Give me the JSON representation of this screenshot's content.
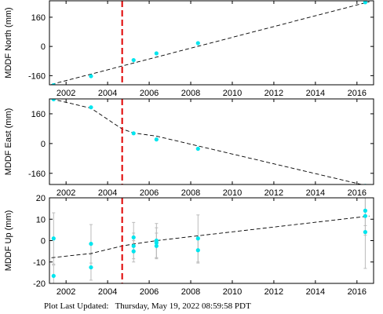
{
  "footer": {
    "label": "Plot Last Updated:",
    "timestamp": "Thursday, May 19, 2022 08:59:58 PDT"
  },
  "colors": {
    "points": "#00e5ee",
    "trend": "#000000",
    "event_line": "#e00000",
    "error_bars": "#bbbbbb"
  },
  "chart_data": [
    {
      "type": "scatter",
      "ylabel": "MDDF North (mm)",
      "xlim": [
        2001.2,
        2016.8
      ],
      "ylim": [
        -210,
        250
      ],
      "xticks": [
        2002,
        2004,
        2006,
        2008,
        2010,
        2012,
        2014,
        2016
      ],
      "yticks": [
        -160,
        0,
        160
      ],
      "event_x": 2004.7,
      "points": [
        [
          2001.4,
          -212
        ],
        [
          2003.2,
          -163
        ],
        [
          2005.25,
          -75
        ],
        [
          2006.35,
          -38
        ],
        [
          2008.35,
          18
        ],
        [
          2016.4,
          242
        ]
      ],
      "trend": [
        [
          2001.3,
          -208
        ],
        [
          2016.6,
          245
        ]
      ]
    },
    {
      "type": "scatter",
      "ylabel": "MDDF East (mm)",
      "xlim": [
        2001.2,
        2016.8
      ],
      "ylim": [
        -220,
        240
      ],
      "xticks": [
        2002,
        2004,
        2006,
        2008,
        2010,
        2012,
        2014,
        2016
      ],
      "yticks": [
        -160,
        0,
        160
      ],
      "event_x": 2004.7,
      "points": [
        [
          2001.4,
          238
        ],
        [
          2003.2,
          195
        ],
        [
          2005.25,
          55
        ],
        [
          2006.35,
          22
        ],
        [
          2008.35,
          -28
        ],
        [
          2016.4,
          -228
        ]
      ],
      "trend": [
        [
          2001.3,
          240
        ],
        [
          2003.2,
          190
        ],
        [
          2004.7,
          78
        ],
        [
          2005.25,
          57
        ],
        [
          2006.35,
          40
        ],
        [
          2016.6,
          -230
        ]
      ]
    },
    {
      "type": "scatter",
      "ylabel": "MDDF Up (mm)",
      "xlim": [
        2001.2,
        2016.8
      ],
      "ylim": [
        -20,
        20
      ],
      "xticks": [
        2002,
        2004,
        2006,
        2008,
        2010,
        2012,
        2014,
        2016
      ],
      "yticks": [
        -20,
        -10,
        0,
        10,
        20
      ],
      "event_x": 2004.7,
      "points": [
        [
          2001.4,
          1.0,
          12.0
        ],
        [
          2001.4,
          -16.5,
          5.0
        ],
        [
          2003.2,
          -1.5,
          9.0
        ],
        [
          2003.2,
          -12.5,
          6.0
        ],
        [
          2005.25,
          1.5,
          7.0
        ],
        [
          2005.25,
          -2.5,
          6.0
        ],
        [
          2005.25,
          -5.0,
          5.0
        ],
        [
          2006.35,
          0.0,
          8.0
        ],
        [
          2006.35,
          -1.0,
          7.0
        ],
        [
          2006.35,
          -2.5,
          6.0
        ],
        [
          2008.35,
          1.0,
          11.0
        ],
        [
          2008.35,
          -4.5,
          6.0
        ],
        [
          2016.4,
          14.0,
          7.0
        ],
        [
          2016.4,
          11.5,
          9.0
        ],
        [
          2016.4,
          4.0,
          17.0
        ]
      ],
      "trend": [
        [
          2001.3,
          -8.0
        ],
        [
          2003.2,
          -6.0
        ],
        [
          2004.7,
          -2.5
        ],
        [
          2005.25,
          -1.6
        ],
        [
          2006.35,
          0.0
        ],
        [
          2016.6,
          11.5
        ]
      ]
    }
  ]
}
